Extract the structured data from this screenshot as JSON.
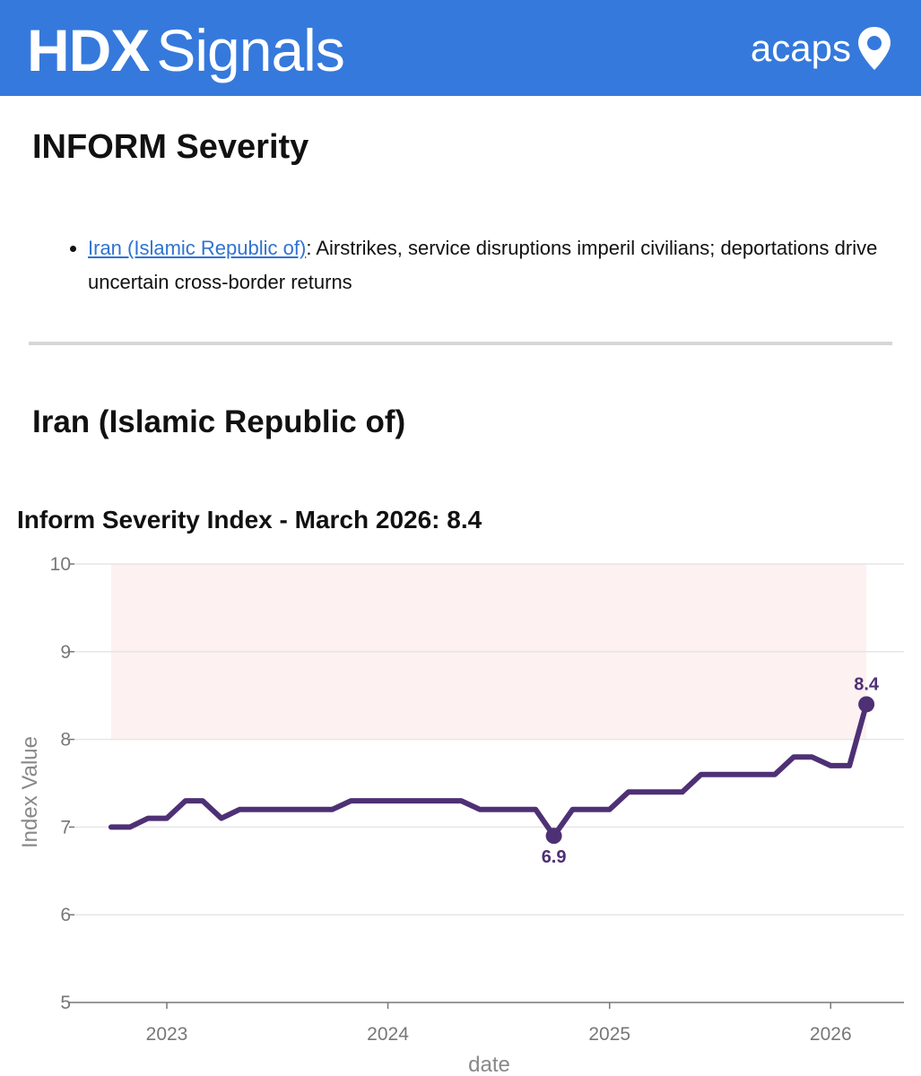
{
  "header": {
    "brand_bold": "HDX",
    "brand_light": "Signals",
    "partner": "acaps",
    "partner_icon": "location-pin-icon",
    "background": "#3579dc"
  },
  "section_title": "INFORM Severity",
  "bullets": [
    {
      "link": "Iran (Islamic Republic of)",
      "text": ": Airstrikes, service disruptions imperil civilians; deportations drive uncertain cross-border returns"
    }
  ],
  "country_title": "Iran (Islamic Republic of)",
  "chart_data": {
    "type": "line",
    "title": "Inform Severity Index - March 2026: 8.4",
    "xlabel": "date",
    "ylabel": "Index Value",
    "ylim": [
      5,
      10
    ],
    "yticks": [
      5,
      6,
      7,
      8,
      9,
      10
    ],
    "xticks": [
      "2023",
      "2024",
      "2025",
      "2026"
    ],
    "grid": true,
    "line_color": "#4e3075",
    "highlight_band": {
      "from_date": "2022-10",
      "to_date": "2026-03",
      "y_from": 8,
      "y_to": 10,
      "color": "#fdf1f1"
    },
    "series": [
      {
        "x": [
          "2022-10",
          "2022-11",
          "2022-12",
          "2023-01",
          "2023-02",
          "2023-03",
          "2023-04",
          "2023-05",
          "2023-06",
          "2023-07",
          "2023-08",
          "2023-09",
          "2023-10",
          "2023-11",
          "2023-12",
          "2024-01",
          "2024-02",
          "2024-03",
          "2024-04",
          "2024-05",
          "2024-06",
          "2024-07",
          "2024-08",
          "2024-09",
          "2024-10",
          "2024-11",
          "2024-12",
          "2025-01",
          "2025-02",
          "2025-03",
          "2025-04",
          "2025-05",
          "2025-06",
          "2025-07",
          "2025-08",
          "2025-09",
          "2025-10",
          "2025-11",
          "2025-12",
          "2026-01",
          "2026-02",
          "2026-03"
        ],
        "values": [
          7.0,
          7.0,
          7.1,
          7.1,
          7.3,
          7.3,
          7.1,
          7.2,
          7.2,
          7.2,
          7.2,
          7.2,
          7.2,
          7.3,
          7.3,
          7.3,
          7.3,
          7.3,
          7.3,
          7.3,
          7.2,
          7.2,
          7.2,
          7.2,
          6.9,
          7.2,
          7.2,
          7.2,
          7.4,
          7.4,
          7.4,
          7.4,
          7.6,
          7.6,
          7.6,
          7.6,
          7.6,
          7.8,
          7.8,
          7.7,
          7.7,
          8.4
        ]
      }
    ],
    "annotations": [
      {
        "x": "2024-10",
        "value": 6.9,
        "label": "6.9",
        "position": "below"
      },
      {
        "x": "2026-03",
        "value": 8.4,
        "label": "8.4",
        "position": "above"
      }
    ]
  }
}
